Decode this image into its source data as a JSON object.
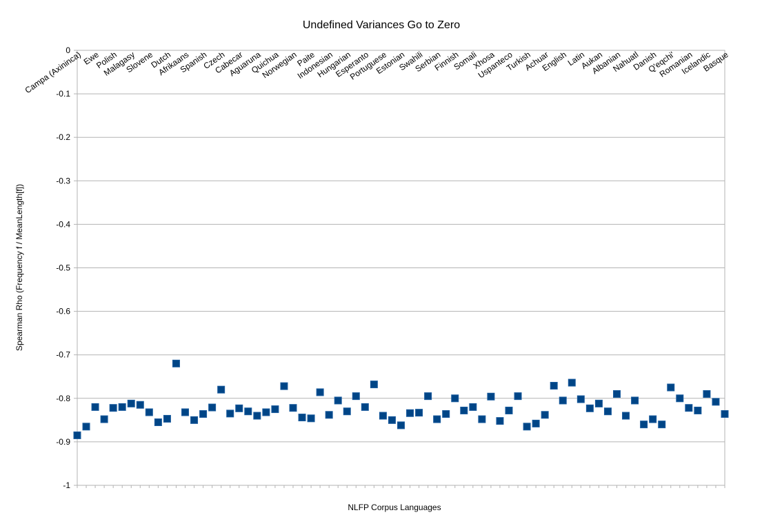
{
  "chart_data": {
    "type": "scatter",
    "title": "Undefined Variances Go to Zero",
    "xlabel": "NLFP Corpus Languages",
    "ylabel": "Spearman Rho (Frequency f / MeanLength[f])",
    "ylim": [
      -1,
      0
    ],
    "yticks": [
      "0",
      "-0.1",
      "-0.2",
      "-0.3",
      "-0.4",
      "-0.5",
      "-0.6",
      "-0.7",
      "-0.8",
      "-0.9",
      "-1"
    ],
    "ytick_values": [
      0,
      -0.1,
      -0.2,
      -0.3,
      -0.4,
      -0.5,
      -0.6,
      -0.7,
      -0.8,
      -0.9,
      -1
    ],
    "grid": true,
    "legend": "none",
    "marker_color": "#004586",
    "labeled_categories": [
      "Campa (Axininca)",
      "Ewe",
      "Polish",
      "Malagasy",
      "Slovene",
      "Dutch",
      "Afrikaans",
      "Spanish",
      "Czech",
      "Cabecar",
      "Aguaruna",
      "Quichua",
      "Norwegian",
      "Paite",
      "Indonesian",
      "Hungarian",
      "Esperanto",
      "Portuguese",
      "Estonian",
      "Swahili",
      "Serbian",
      "Finnish",
      "Somali",
      "Xhosa",
      "Uspanteco",
      "Turkish",
      "Achuar",
      "English",
      "Latin",
      "Aukan",
      "Albanian",
      "Nahuatl",
      "Danish",
      "Q'eqchi'",
      "Romanian",
      "Icelandic",
      "Basque"
    ],
    "label_every": 2,
    "values": [
      -0.885,
      -0.865,
      -0.82,
      -0.848,
      -0.822,
      -0.82,
      -0.812,
      -0.815,
      -0.832,
      -0.855,
      -0.847,
      -0.72,
      -0.832,
      -0.85,
      -0.836,
      -0.821,
      -0.78,
      -0.835,
      -0.823,
      -0.83,
      -0.84,
      -0.832,
      -0.825,
      -0.772,
      -0.822,
      -0.844,
      -0.846,
      -0.786,
      -0.838,
      -0.805,
      -0.83,
      -0.795,
      -0.82,
      -0.768,
      -0.84,
      -0.85,
      -0.862,
      -0.834,
      -0.833,
      -0.795,
      -0.848,
      -0.836,
      -0.8,
      -0.828,
      -0.82,
      -0.848,
      -0.796,
      -0.852,
      -0.828,
      -0.795,
      -0.865,
      -0.858,
      -0.838,
      -0.771,
      -0.805,
      -0.764,
      -0.802,
      -0.823,
      -0.812,
      -0.83,
      -0.79,
      -0.84,
      -0.805,
      -0.86,
      -0.848,
      -0.86,
      -0.775,
      -0.8,
      -0.822,
      -0.828,
      -0.79,
      -0.808,
      -0.836
    ]
  }
}
